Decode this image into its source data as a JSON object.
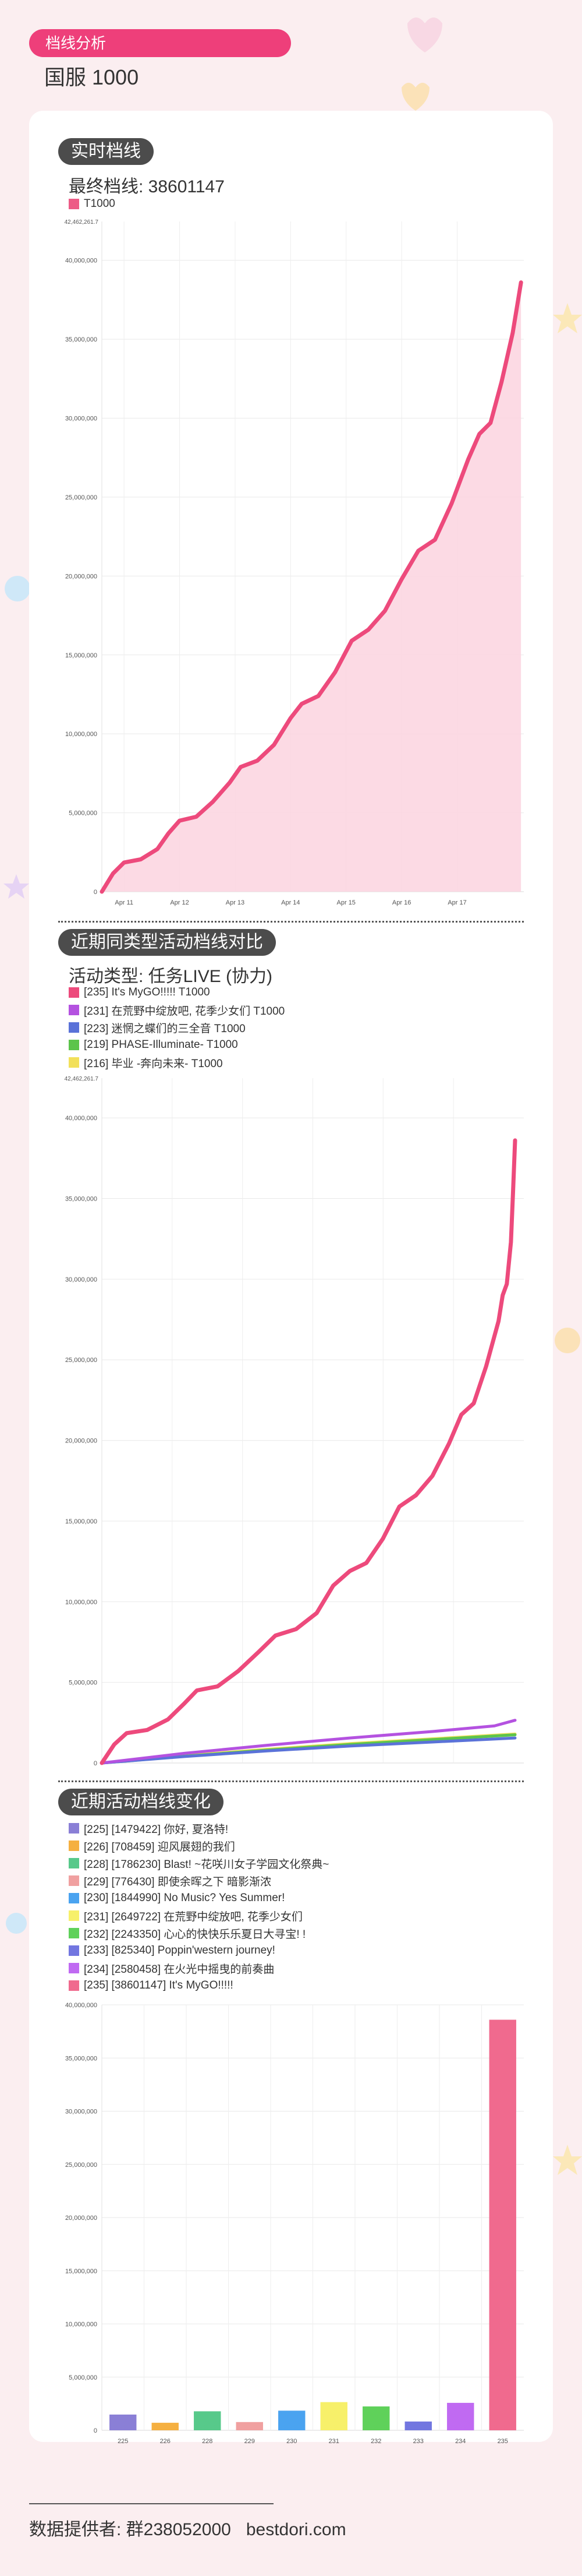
{
  "header": {
    "badge": "档线分析",
    "server_title": "国服  1000"
  },
  "colors": {
    "accent": "#ee3f7a",
    "card": "#ffffff",
    "page_bg": "#fbeef0"
  },
  "realtime": {
    "section_title": "实时档线",
    "final_label": "最终档线: 38601147",
    "legend": [
      {
        "label": "T1000",
        "color": "#ed5b86"
      }
    ],
    "chart_data": {
      "type": "area",
      "title": "",
      "top_label": "42,462,261.7",
      "y_ticks": [
        "0",
        "5,000,000",
        "10,000,000",
        "15,000,000",
        "20,000,000",
        "25,000,000",
        "30,000,000",
        "35,000,000",
        "40,000,000"
      ],
      "x_ticks": [
        "Apr 11",
        "Apr 12",
        "Apr 13",
        "Apr 14",
        "Apr 15",
        "Apr 16",
        "Apr 17"
      ],
      "ylim": [
        0,
        42462261.7
      ],
      "x_unit": "day (Apr 11 = 11)",
      "grid": true,
      "series": [
        {
          "name": "T1000",
          "color": "#ed4a7c",
          "points": [
            [
              10.6,
              0
            ],
            [
              10.8,
              1150000
            ],
            [
              11.0,
              1850000
            ],
            [
              11.3,
              2050000
            ],
            [
              11.6,
              2700000
            ],
            [
              11.8,
              3700000
            ],
            [
              12.0,
              4500000
            ],
            [
              12.3,
              4750000
            ],
            [
              12.6,
              5700000
            ],
            [
              12.9,
              6900000
            ],
            [
              13.1,
              7900000
            ],
            [
              13.4,
              8300000
            ],
            [
              13.7,
              9300000
            ],
            [
              14.0,
              11000000
            ],
            [
              14.2,
              11900000
            ],
            [
              14.5,
              12400000
            ],
            [
              14.8,
              13900000
            ],
            [
              15.1,
              15900000
            ],
            [
              15.4,
              16600000
            ],
            [
              15.7,
              17800000
            ],
            [
              16.0,
              19800000
            ],
            [
              16.3,
              21600000
            ],
            [
              16.6,
              22300000
            ],
            [
              16.9,
              24600000
            ],
            [
              17.2,
              27400000
            ],
            [
              17.4,
              29000000
            ],
            [
              17.6,
              29700000
            ],
            [
              17.8,
              32300000
            ],
            [
              18.0,
              35400000
            ],
            [
              18.15,
              38601147
            ]
          ]
        }
      ]
    }
  },
  "comparison": {
    "section_title": "近期同类型活动档线对比",
    "type_label": "活动类型: 任务LIVE (协力)",
    "legend": [
      {
        "label": "[235] It's MyGO!!!!! T1000",
        "color": "#ed4a7c"
      },
      {
        "label": "[231] 在荒野中绽放吧, 花季少女们 T1000",
        "color": "#b452e0"
      },
      {
        "label": "[223] 迷惘之蝶们的三全音 T1000",
        "color": "#5a72d8"
      },
      {
        "label": "[219] PHASE-Illuminate- T1000",
        "color": "#5cc44c"
      },
      {
        "label": "[216] 毕业 -奔向未来- T1000",
        "color": "#f2e05a"
      }
    ],
    "chart_data": {
      "type": "line",
      "title": "",
      "top_label": "42,462,261.7",
      "y_ticks": [
        "0",
        "5,000,000",
        "10,000,000",
        "15,000,000",
        "20,000,000",
        "25,000,000",
        "30,000,000",
        "35,000,000",
        "40,000,000"
      ],
      "ylim": [
        0,
        42462261.7
      ],
      "x_unit": "event progress (0-1)",
      "grid": true,
      "series": [
        {
          "name": "[235] It's MyGO!!!!! T1000",
          "color": "#ed4a7c",
          "points": [
            [
              0,
              0
            ],
            [
              0.03,
              1150000
            ],
            [
              0.06,
              1850000
            ],
            [
              0.11,
              2050000
            ],
            [
              0.16,
              2700000
            ],
            [
              0.2,
              3700000
            ],
            [
              0.23,
              4500000
            ],
            [
              0.28,
              4750000
            ],
            [
              0.33,
              5700000
            ],
            [
              0.38,
              6900000
            ],
            [
              0.42,
              7900000
            ],
            [
              0.47,
              8300000
            ],
            [
              0.52,
              9300000
            ],
            [
              0.56,
              11000000
            ],
            [
              0.6,
              11900000
            ],
            [
              0.64,
              12400000
            ],
            [
              0.68,
              13900000
            ],
            [
              0.72,
              15900000
            ],
            [
              0.76,
              16600000
            ],
            [
              0.8,
              17800000
            ],
            [
              0.84,
              19800000
            ],
            [
              0.87,
              21600000
            ],
            [
              0.9,
              22300000
            ],
            [
              0.93,
              24600000
            ],
            [
              0.96,
              27400000
            ],
            [
              0.97,
              29000000
            ],
            [
              0.98,
              29700000
            ],
            [
              0.99,
              32300000
            ],
            [
              0.995,
              35400000
            ],
            [
              1.0,
              38601147
            ]
          ]
        },
        {
          "name": "[231] 在荒野中绽放吧, 花季少女们 T1000",
          "color": "#b452e0",
          "points": [
            [
              0,
              0
            ],
            [
              0.2,
              600000
            ],
            [
              0.4,
              1100000
            ],
            [
              0.6,
              1550000
            ],
            [
              0.8,
              1950000
            ],
            [
              0.95,
              2300000
            ],
            [
              1.0,
              2649722
            ]
          ]
        },
        {
          "name": "[223] 迷惘之蝶们的三全音 T1000",
          "color": "#5a72d8",
          "points": [
            [
              0,
              0
            ],
            [
              0.2,
              400000
            ],
            [
              0.4,
              750000
            ],
            [
              0.6,
              1050000
            ],
            [
              0.8,
              1300000
            ],
            [
              1.0,
              1550000
            ]
          ]
        },
        {
          "name": "[219] PHASE-Illuminate- T1000",
          "color": "#5cc44c",
          "points": [
            [
              0,
              0
            ],
            [
              0.2,
              420000
            ],
            [
              0.4,
              800000
            ],
            [
              0.6,
              1150000
            ],
            [
              0.8,
              1450000
            ],
            [
              1.0,
              1750000
            ]
          ]
        },
        {
          "name": "[216] 毕业 -奔向未来- T1000",
          "color": "#f2e05a",
          "points": [
            [
              0,
              0
            ],
            [
              0.2,
              450000
            ],
            [
              0.4,
              850000
            ],
            [
              0.6,
              1200000
            ],
            [
              0.8,
              1500000
            ],
            [
              1.0,
              1800000
            ]
          ]
        }
      ]
    }
  },
  "recent": {
    "section_title": "近期活动档线变化",
    "legend": [
      {
        "label": "[225] [1479422] 你好, 夏洛特!",
        "color": "#8a7fd6"
      },
      {
        "label": "[226] [708459] 迎风展翅的我们",
        "color": "#f5b041"
      },
      {
        "label": "[228] [1786230] Blast! ~花咲川女子学园文化祭典~",
        "color": "#57c98a"
      },
      {
        "label": "[229] [776430] 即使余晖之下 暗影渐浓",
        "color": "#f0a0a0"
      },
      {
        "label": "[230] [1844990] No Music? Yes Summer!",
        "color": "#4aa3f0"
      },
      {
        "label": "[231] [2649722] 在荒野中绽放吧, 花季少女们",
        "color": "#f7f06a"
      },
      {
        "label": "[232] [2243350] 心心的快快乐乐夏日大寻宝! !",
        "color": "#5fd15a"
      },
      {
        "label": "[233] [825340] Poppin'western journey!",
        "color": "#7276e0"
      },
      {
        "label": "[234] [2580458] 在火光中摇曳的前奏曲",
        "color": "#c06af2"
      },
      {
        "label": "[235] [38601147] It's MyGO!!!!!",
        "color": "#f06a8e"
      }
    ],
    "chart_data": {
      "type": "bar",
      "title": "",
      "categories": [
        "225",
        "226",
        "228",
        "229",
        "230",
        "231",
        "232",
        "233",
        "234",
        "235"
      ],
      "values": [
        1479422,
        708459,
        1786230,
        776430,
        1844990,
        2649722,
        2243350,
        825340,
        2580458,
        38601147
      ],
      "colors": [
        "#8a7fd6",
        "#f5b041",
        "#57c98a",
        "#f0a0a0",
        "#4aa3f0",
        "#f7f06a",
        "#5fd15a",
        "#7276e0",
        "#c06af2",
        "#f06a8e"
      ],
      "y_ticks": [
        "0",
        "5,000,000",
        "10,000,000",
        "15,000,000",
        "20,000,000",
        "25,000,000",
        "30,000,000",
        "35,000,000",
        "40,000,000"
      ],
      "ylim": [
        0,
        40000000
      ],
      "grid": true
    }
  },
  "footer": {
    "provider": "数据提供者: 群238052000",
    "site": "bestdori.com"
  }
}
